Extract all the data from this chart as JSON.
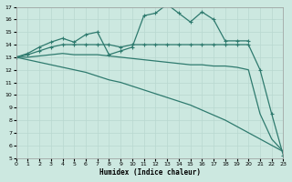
{
  "xlabel": "Humidex (Indice chaleur)",
  "background_color": "#cce8e0",
  "grid_color": "#b8d8d0",
  "line_color": "#2e7a6e",
  "xlim": [
    0,
    23
  ],
  "ylim": [
    5,
    17
  ],
  "xticks": [
    0,
    1,
    2,
    3,
    4,
    5,
    6,
    7,
    8,
    9,
    10,
    11,
    12,
    13,
    14,
    15,
    16,
    17,
    18,
    19,
    20,
    21,
    22,
    23
  ],
  "yticks": [
    5,
    6,
    7,
    8,
    9,
    10,
    11,
    12,
    13,
    14,
    15,
    16,
    17
  ],
  "series": [
    {
      "x": [
        0,
        1,
        2,
        3,
        4,
        5,
        6,
        7,
        8,
        9,
        10,
        11,
        12,
        13,
        14,
        15,
        16,
        17,
        18,
        19,
        20
      ],
      "y": [
        13.0,
        13.3,
        13.8,
        14.2,
        14.5,
        14.2,
        14.8,
        15.0,
        13.2,
        13.5,
        13.8,
        16.3,
        16.5,
        17.2,
        16.5,
        15.8,
        16.6,
        16.0,
        14.3,
        14.3,
        14.3
      ],
      "marker": true
    },
    {
      "x": [
        0,
        1,
        2,
        3,
        4,
        5,
        6,
        7,
        8,
        9,
        10,
        11,
        12,
        13,
        14,
        15,
        16,
        17,
        18,
        19,
        20,
        21,
        22,
        23
      ],
      "y": [
        13.0,
        13.2,
        13.5,
        13.8,
        14.0,
        14.0,
        14.0,
        14.0,
        14.0,
        13.8,
        14.0,
        14.0,
        14.0,
        14.0,
        14.0,
        14.0,
        14.0,
        14.0,
        14.0,
        14.0,
        14.0,
        12.0,
        8.5,
        5.2
      ],
      "marker": true
    },
    {
      "x": [
        0,
        1,
        2,
        3,
        4,
        5,
        6,
        7,
        8,
        9,
        10,
        11,
        12,
        13,
        14,
        15,
        16,
        17,
        18,
        19,
        20,
        21,
        22,
        23
      ],
      "y": [
        13.0,
        13.0,
        13.1,
        13.2,
        13.3,
        13.2,
        13.2,
        13.2,
        13.1,
        13.0,
        12.9,
        12.8,
        12.7,
        12.6,
        12.5,
        12.4,
        12.4,
        12.3,
        12.3,
        12.2,
        12.0,
        8.5,
        6.5,
        5.5
      ],
      "marker": false
    },
    {
      "x": [
        0,
        1,
        2,
        3,
        4,
        5,
        6,
        7,
        8,
        9,
        10,
        11,
        12,
        13,
        14,
        15,
        16,
        17,
        18,
        19,
        20,
        21,
        22,
        23
      ],
      "y": [
        13.0,
        12.8,
        12.6,
        12.4,
        12.2,
        12.0,
        11.8,
        11.5,
        11.2,
        11.0,
        10.7,
        10.4,
        10.1,
        9.8,
        9.5,
        9.2,
        8.8,
        8.4,
        8.0,
        7.5,
        7.0,
        6.5,
        6.0,
        5.5
      ],
      "marker": false
    }
  ]
}
